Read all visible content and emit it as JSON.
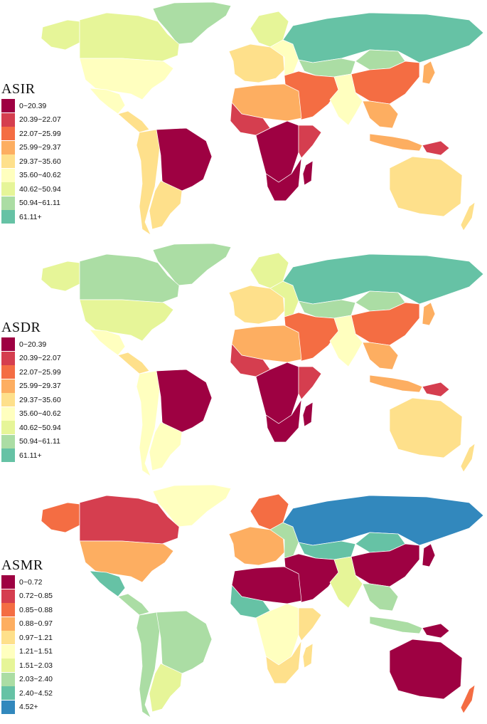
{
  "panels": [
    {
      "title": "ASIR",
      "legend": [
        {
          "label": "0~20.39",
          "color": "#9e0142"
        },
        {
          "label": "20.39~22.07",
          "color": "#d53e4f"
        },
        {
          "label": "22.07~25.99",
          "color": "#f46d43"
        },
        {
          "label": "25.99~29.37",
          "color": "#fdae61"
        },
        {
          "label": "29.37~35.60",
          "color": "#fee08b"
        },
        {
          "label": "35.60~40.62",
          "color": "#ffffbf"
        },
        {
          "label": "40.62~50.94",
          "color": "#e6f598"
        },
        {
          "label": "50.94~61.11",
          "color": "#abdda4"
        },
        {
          "label": "61.11+",
          "color": "#66c2a5"
        }
      ],
      "regions": {
        "canada": 6,
        "greenland": 7,
        "alaska": 6,
        "usa": 5,
        "mexico": 5,
        "central_america": 4,
        "south_america_west": 4,
        "brazil": 0,
        "southern_cone": 4,
        "russia": 8,
        "europe_west": 4,
        "europe_north": 6,
        "europe_east": 5,
        "north_africa": 3,
        "west_africa": 1,
        "central_africa": 0,
        "east_africa": 1,
        "southern_africa": 0,
        "madagascar": 0,
        "middle_east": 2,
        "central_asia": 7,
        "south_asia": 5,
        "china": 2,
        "mongolia": 7,
        "japan": 3,
        "southeast_asia": 3,
        "indonesia": 3,
        "png": 1,
        "australia": 4,
        "new_zealand": 4
      }
    },
    {
      "title": "ASDR",
      "legend": [
        {
          "label": "0~20.39",
          "color": "#9e0142"
        },
        {
          "label": "20.39~22.07",
          "color": "#d53e4f"
        },
        {
          "label": "22.07~25.99",
          "color": "#f46d43"
        },
        {
          "label": "25.99~29.37",
          "color": "#fdae61"
        },
        {
          "label": "29.37~35.60",
          "color": "#fee08b"
        },
        {
          "label": "35.60~40.62",
          "color": "#ffffbf"
        },
        {
          "label": "40.62~50.94",
          "color": "#e6f598"
        },
        {
          "label": "50.94~61.11",
          "color": "#abdda4"
        },
        {
          "label": "61.11+",
          "color": "#66c2a5"
        }
      ],
      "regions": {
        "canada": 7,
        "greenland": 7,
        "alaska": 6,
        "usa": 6,
        "mexico": 5,
        "central_america": 4,
        "south_america_west": 5,
        "brazil": 0,
        "southern_cone": 5,
        "russia": 8,
        "europe_west": 4,
        "europe_north": 6,
        "europe_east": 6,
        "north_africa": 3,
        "west_africa": 1,
        "central_africa": 0,
        "east_africa": 1,
        "southern_africa": 0,
        "madagascar": 0,
        "middle_east": 2,
        "central_asia": 7,
        "south_asia": 5,
        "china": 2,
        "mongolia": 7,
        "japan": 3,
        "southeast_asia": 3,
        "indonesia": 3,
        "png": 1,
        "australia": 4,
        "new_zealand": 4
      }
    },
    {
      "title": "ASMR",
      "legend": [
        {
          "label": "0~0.72",
          "color": "#9e0142"
        },
        {
          "label": "0.72~0.85",
          "color": "#d53e4f"
        },
        {
          "label": "0.85~0.88",
          "color": "#f46d43"
        },
        {
          "label": "0.88~0.97",
          "color": "#fdae61"
        },
        {
          "label": "0.97~1.21",
          "color": "#fee08b"
        },
        {
          "label": "1.21~1.51",
          "color": "#ffffbf"
        },
        {
          "label": "1.51~2.03",
          "color": "#e6f598"
        },
        {
          "label": "2.03~2.40",
          "color": "#abdda4"
        },
        {
          "label": "2.40~4.52",
          "color": "#66c2a5"
        },
        {
          "label": "4.52+",
          "color": "#3288bd"
        }
      ],
      "regions": {
        "canada": 1,
        "greenland": 5,
        "alaska": 2,
        "usa": 3,
        "mexico": 8,
        "central_america": 7,
        "south_america_west": 7,
        "brazil": 7,
        "southern_cone": 6,
        "russia": 9,
        "europe_west": 3,
        "europe_north": 2,
        "europe_east": 7,
        "north_africa": 0,
        "west_africa": 8,
        "central_africa": 5,
        "east_africa": 4,
        "southern_africa": 4,
        "madagascar": 4,
        "middle_east": 0,
        "central_asia": 8,
        "south_asia": 6,
        "china": 0,
        "mongolia": 8,
        "japan": 0,
        "southeast_asia": 7,
        "indonesia": 7,
        "png": 0,
        "australia": 0,
        "new_zealand": 2
      }
    }
  ]
}
